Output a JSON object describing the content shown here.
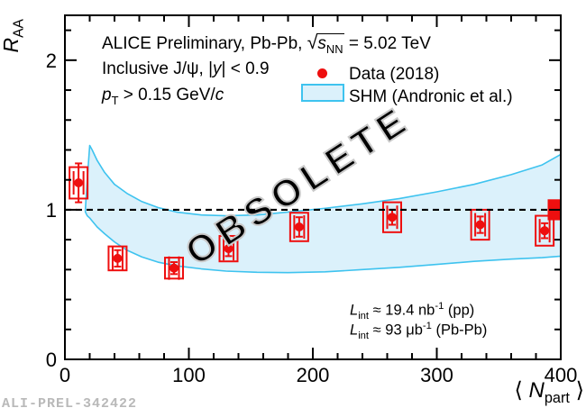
{
  "figure_id": "ALI-PREL-342422",
  "watermark": "OBSOLETE",
  "annotations": {
    "line1_pre": "ALICE Preliminary, Pb-Pb, ",
    "line1_sqrt": "√",
    "line1_s": "s",
    "line1_s_sub": "NN",
    "line1_post": " = 5.02 TeV",
    "line2_pre": "Inclusive J/ψ, |",
    "line2_y": "y",
    "line2_post": "| < 0.9",
    "line3_p": "p",
    "line3_p_sub": "T",
    "line3_mid": " > 0.15 GeV/",
    "line3_c": "c"
  },
  "legend": {
    "data_label": "Data (2018)",
    "shm_label": "SHM (Andronic et al.)"
  },
  "luminosity": {
    "pp": {
      "sym": "L",
      "sub": "int",
      "mid": " ≈ 19.4 nb",
      "sup": "-1",
      "post": " (pp)"
    },
    "pbpb": {
      "sym": "L",
      "sub": "int",
      "mid": " ≈ 93 μb",
      "sup": "-1",
      "post": " (Pb-Pb)"
    }
  },
  "axes": {
    "y_title_main": "R",
    "y_title_sub": "AA",
    "x_title_open": "⟨ ",
    "x_title_main": "N",
    "x_title_sub": "part",
    "x_title_close": " ⟩"
  },
  "chart_data": {
    "type": "scatter",
    "title": "ALICE Preliminary, Pb-Pb, sqrt(s_NN) = 5.02 TeV",
    "xlabel": "<N_part>",
    "ylabel": "R_AA",
    "xlim": [
      0,
      400
    ],
    "ylim": [
      0,
      2.3
    ],
    "x_major_ticks": [
      0,
      100,
      200,
      300,
      400
    ],
    "x_tick_labels": [
      "0",
      "100",
      "200",
      "300",
      "400"
    ],
    "x_minor_step": 20,
    "y_major_ticks": [
      0,
      1,
      2
    ],
    "y_tick_labels": [
      "0",
      "1",
      "2"
    ],
    "y_minor_step": 0.2,
    "grid": false,
    "legend_position": "top-right-inside",
    "reference_line_y": 1.0,
    "colors": {
      "data": "#ee0f0f",
      "band_fill": "#dbf1fb",
      "band_edge": "#3ec3ef",
      "frame": "#000000",
      "watermark": "#c9c9c9"
    },
    "series": [
      {
        "name": "Data (2018)",
        "marker": "filled-circle",
        "points": [
          {
            "npart": 11,
            "raa": 1.18,
            "stat": 0.13,
            "syst": 0.105
          },
          {
            "npart": 42.5,
            "raa": 0.675,
            "stat": 0.055,
            "syst": 0.08
          },
          {
            "npart": 88,
            "raa": 0.61,
            "stat": 0.04,
            "syst": 0.07
          },
          {
            "npart": 132,
            "raa": 0.74,
            "stat": 0.05,
            "syst": 0.085
          },
          {
            "npart": 189,
            "raa": 0.885,
            "stat": 0.065,
            "syst": 0.095
          },
          {
            "npart": 264,
            "raa": 0.95,
            "stat": 0.05,
            "syst": 0.1
          },
          {
            "npart": 335,
            "raa": 0.9,
            "stat": 0.055,
            "syst": 0.1
          },
          {
            "npart": 387,
            "raa": 0.86,
            "stat": 0.05,
            "syst": 0.1
          }
        ]
      }
    ],
    "band": {
      "name": "SHM (Andronic et al.)",
      "x": [
        16.5,
        18,
        20,
        22,
        26,
        32,
        40,
        50,
        62,
        75,
        90,
        110,
        130,
        155,
        180,
        210,
        240,
        270,
        300,
        330,
        360,
        385,
        400
      ],
      "top": [
        1.0,
        1.2,
        1.43,
        1.4,
        1.33,
        1.25,
        1.17,
        1.11,
        1.055,
        1.015,
        0.985,
        0.965,
        0.96,
        0.965,
        0.985,
        1.01,
        1.04,
        1.075,
        1.12,
        1.17,
        1.235,
        1.3,
        1.37
      ],
      "bottom": [
        0.985,
        0.96,
        0.945,
        0.925,
        0.885,
        0.84,
        0.785,
        0.73,
        0.685,
        0.65,
        0.625,
        0.605,
        0.59,
        0.582,
        0.58,
        0.585,
        0.6,
        0.615,
        0.635,
        0.655,
        0.67,
        0.68,
        0.69
      ]
    },
    "global_uncertainty_box": {
      "npart": 400,
      "raa": 1.0,
      "half_height": 0.07
    }
  }
}
